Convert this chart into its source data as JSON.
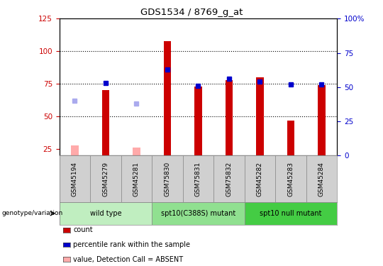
{
  "title": "GDS1534 / 8769_g_at",
  "samples": [
    "GSM45194",
    "GSM45279",
    "GSM45281",
    "GSM75830",
    "GSM75831",
    "GSM75832",
    "GSM45282",
    "GSM45283",
    "GSM45284"
  ],
  "count_values": [
    28,
    70,
    26,
    108,
    73,
    78,
    80,
    47,
    74
  ],
  "count_absent": [
    true,
    false,
    true,
    false,
    false,
    false,
    false,
    false,
    false
  ],
  "percentile_values": [
    40,
    53,
    38,
    63,
    51,
    56,
    54,
    52,
    52
  ],
  "percentile_absent": [
    true,
    false,
    true,
    false,
    false,
    false,
    false,
    false,
    false
  ],
  "groups": [
    {
      "label": "wild type",
      "start": 0,
      "end": 3,
      "color": "#c0eec0"
    },
    {
      "label": "spt10(C388S) mutant",
      "start": 3,
      "end": 6,
      "color": "#90e090"
    },
    {
      "label": "spt10 null mutant",
      "start": 6,
      "end": 9,
      "color": "#44cc44"
    }
  ],
  "ylim_left": [
    20,
    125
  ],
  "ylim_right": [
    0,
    100
  ],
  "yticks_left": [
    25,
    50,
    75,
    100,
    125
  ],
  "yticks_right": [
    0,
    25,
    50,
    75,
    100
  ],
  "ytick_labels_left": [
    "25",
    "50",
    "75",
    "100",
    "125"
  ],
  "ytick_labels_right": [
    "0",
    "25",
    "50",
    "75",
    "100%"
  ],
  "color_count": "#cc0000",
  "color_count_absent": "#ffaaaa",
  "color_percentile": "#0000cc",
  "color_percentile_absent": "#aaaaee",
  "bar_width": 0.25,
  "bg_color": "#ffffff",
  "genotype_label": "genotype/variation"
}
